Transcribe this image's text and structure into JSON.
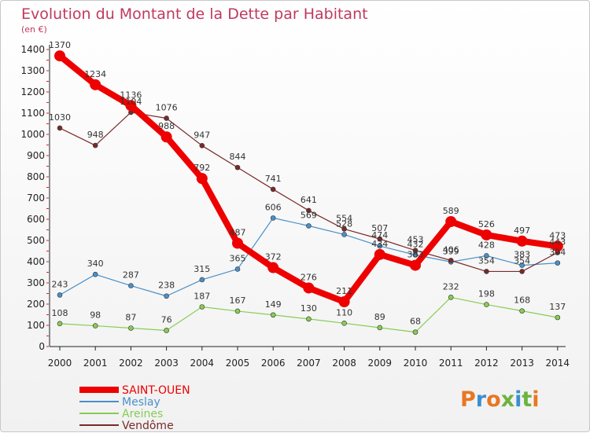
{
  "chart_data": {
    "type": "line",
    "title": "Evolution du Montant de la Dette par Habitant",
    "subtitle": "(en €)",
    "x": [
      "2000",
      "2001",
      "2002",
      "2003",
      "2004",
      "2005",
      "2006",
      "2007",
      "2008",
      "2009",
      "2010",
      "2011",
      "2012",
      "2013",
      "2014"
    ],
    "ylim": [
      0,
      1400
    ],
    "yticks": [
      0,
      100,
      200,
      300,
      400,
      500,
      600,
      700,
      800,
      900,
      1000,
      1100,
      1200,
      1300,
      1400
    ],
    "grid": false,
    "legend_position": "bottom-left",
    "series": [
      {
        "name": "SAINT-OUEN",
        "color": "#ee0000",
        "values": [
          1370,
          1234,
          1136,
          988,
          792,
          487,
          372,
          276,
          211,
          434,
          383,
          589,
          526,
          497,
          473
        ]
      },
      {
        "name": "Meslay",
        "color": "#4a90c8",
        "values": [
          243,
          340,
          287,
          238,
          315,
          365,
          606,
          569,
          528,
          474,
          432,
          399,
          428,
          383,
          394
        ]
      },
      {
        "name": "Areines",
        "color": "#88cc55",
        "values": [
          108,
          98,
          87,
          76,
          187,
          167,
          149,
          130,
          110,
          89,
          68,
          232,
          198,
          168,
          137
        ]
      },
      {
        "name": "Vendôme",
        "color": "#7a2a2a",
        "values": [
          1030,
          948,
          1104,
          1076,
          947,
          844,
          741,
          641,
          554,
          507,
          453,
          406,
          354,
          354,
          443
        ]
      }
    ]
  },
  "brand": {
    "text": "Proxiti",
    "colors": [
      "#e87722",
      "#3a8fd1",
      "#e87722",
      "#6cb33f",
      "#3a8fd1",
      "#6cb33f",
      "#e87722"
    ]
  }
}
